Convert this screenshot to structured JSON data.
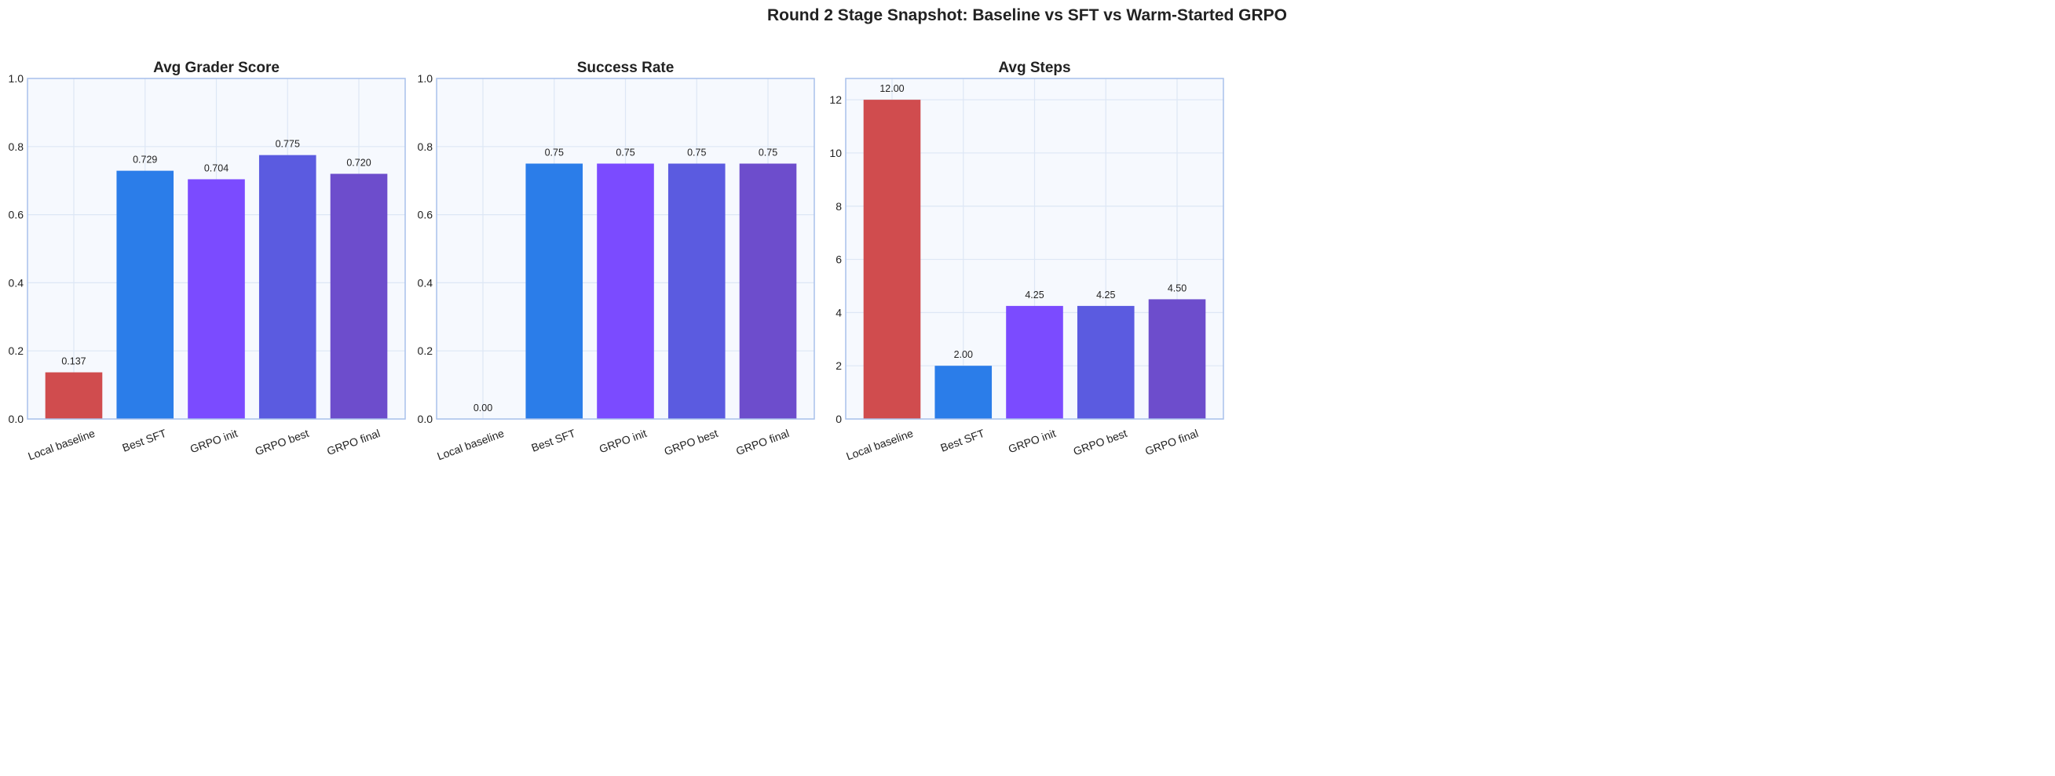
{
  "figure_title": "Round 2 Stage Snapshot: Baseline vs SFT vs Warm-Started GRPO",
  "colors": {
    "Local baseline": "#d04c4e",
    "Best SFT": "#2b7de9",
    "GRPO init": "#7b4bff",
    "GRPO best": "#5b5be0",
    "GRPO final": "#6d4dcc",
    "axes_background": "#f6f9fe",
    "axes_border": "#a9c1eb",
    "grid": "#dde7f5"
  },
  "chart_data": [
    {
      "type": "bar",
      "title": "Avg Grader Score",
      "categories": [
        "Local baseline",
        "Best SFT",
        "GRPO init",
        "GRPO best",
        "GRPO final"
      ],
      "values": [
        0.137,
        0.729,
        0.704,
        0.775,
        0.72
      ],
      "labels": [
        "0.137",
        "0.729",
        "0.704",
        "0.775",
        "0.720"
      ],
      "ylim": [
        0,
        1.0
      ],
      "yticks": [
        0.0,
        0.2,
        0.4,
        0.6,
        0.8,
        1.0
      ],
      "ytick_labels": [
        "0.0",
        "0.2",
        "0.4",
        "0.6",
        "0.8",
        "1.0"
      ],
      "grid": true
    },
    {
      "type": "bar",
      "title": "Success Rate",
      "categories": [
        "Local baseline",
        "Best SFT",
        "GRPO init",
        "GRPO best",
        "GRPO final"
      ],
      "values": [
        0.0,
        0.75,
        0.75,
        0.75,
        0.75
      ],
      "labels": [
        "0.00",
        "0.75",
        "0.75",
        "0.75",
        "0.75"
      ],
      "ylim": [
        0,
        1.0
      ],
      "yticks": [
        0.0,
        0.2,
        0.4,
        0.6,
        0.8,
        1.0
      ],
      "ytick_labels": [
        "0.0",
        "0.2",
        "0.4",
        "0.6",
        "0.8",
        "1.0"
      ],
      "grid": true
    },
    {
      "type": "bar",
      "title": "Avg Steps",
      "categories": [
        "Local baseline",
        "Best SFT",
        "GRPO init",
        "GRPO best",
        "GRPO final"
      ],
      "values": [
        12.0,
        2.0,
        4.25,
        4.25,
        4.5
      ],
      "labels": [
        "12.00",
        "2.00",
        "4.25",
        "4.25",
        "4.50"
      ],
      "ylim": [
        0,
        12.8
      ],
      "yticks": [
        0,
        2,
        4,
        6,
        8,
        10,
        12
      ],
      "ytick_labels": [
        "0",
        "2",
        "4",
        "6",
        "8",
        "10",
        "12"
      ],
      "grid": true
    }
  ]
}
